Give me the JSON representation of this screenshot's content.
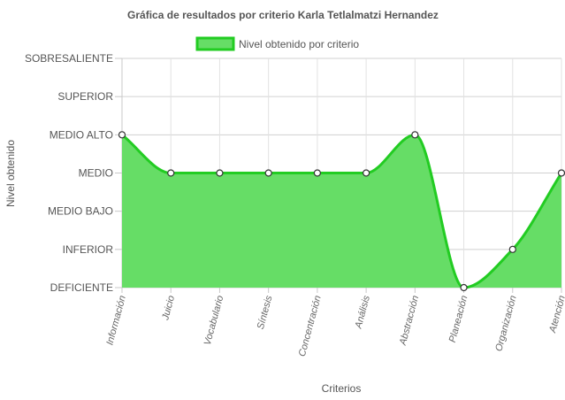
{
  "chart_data": {
    "type": "area",
    "title": "Gráfica de resultados por criterio Karla Tetlalmatzi Hernandez",
    "xlabel": "Criterios",
    "ylabel": "Nivel obtenido",
    "legend": {
      "position": "top"
    },
    "y_levels": [
      "DEFICIENTE",
      "INFERIOR",
      "MEDIO BAJO",
      "MEDIO",
      "MEDIO ALTO",
      "SUPERIOR",
      "SOBRESALIENTE"
    ],
    "ylim": [
      0,
      6
    ],
    "grid": true,
    "categories": [
      "Información",
      "Juicio",
      "Vocabulario",
      "Síntesis",
      "Concentración",
      "Análisis",
      "Abstracción",
      "Planeación",
      "Organización",
      "Atención"
    ],
    "series": [
      {
        "name": "Nivel obtenido por criterio",
        "values": [
          4,
          3,
          3,
          3,
          3,
          3,
          4,
          0,
          1,
          3
        ],
        "fill_color": "#66dd66",
        "line_color": "#22cc22"
      }
    ]
  }
}
